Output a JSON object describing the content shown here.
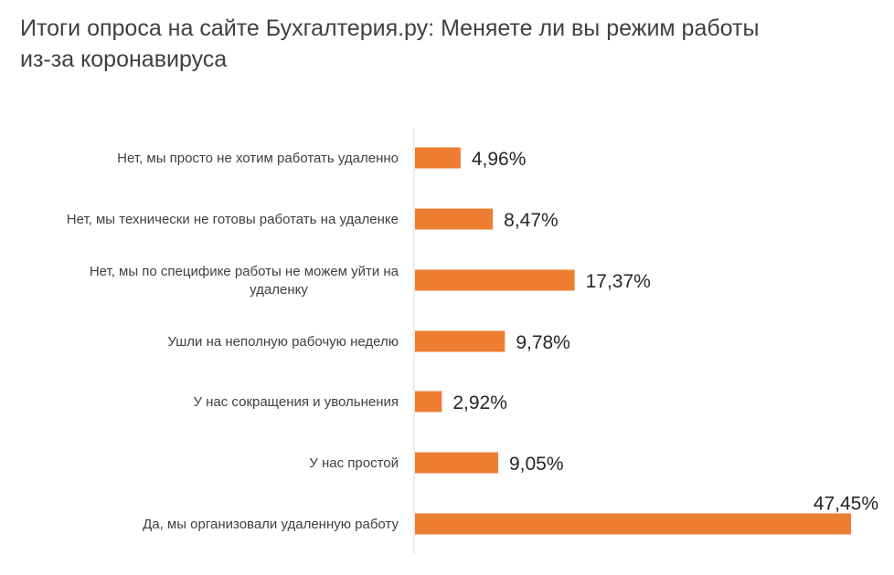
{
  "chart_data": {
    "type": "bar",
    "orientation": "horizontal",
    "title": "Итоги опроса на сайте Бухгалтерия.ру: Меняете ли вы режим работы из-за коронавируса",
    "xlabel": "",
    "ylabel": "",
    "categories": [
      "Нет, мы просто не хотим работать удаленно",
      "Нет, мы технически не готовы работать на удаленке",
      "Нет, мы по специфике работы не можем уйти на удаленку",
      "Ушли на неполную рабочую неделю",
      "У нас сокращения и увольнения",
      "У нас простой",
      "Да, мы организовали удаленную работу"
    ],
    "category_lines": [
      [
        "Нет, мы просто не хотим работать удаленно"
      ],
      [
        "Нет, мы технически не готовы работать на удаленке"
      ],
      [
        "Нет, мы по специфике работы не можем уйти на",
        "удаленку"
      ],
      [
        "Ушли на неполную рабочую неделю"
      ],
      [
        "У нас сокращения и увольнения"
      ],
      [
        "У нас простой"
      ],
      [
        "Да, мы организовали удаленную работу"
      ]
    ],
    "values": [
      4.96,
      8.47,
      17.37,
      9.78,
      2.92,
      9.05,
      47.45
    ],
    "value_labels": [
      "4,96%",
      "8,47%",
      "17,37%",
      "9,78%",
      "2,92%",
      "9,05%",
      "47,45%"
    ],
    "xlim": [
      0,
      47.45
    ],
    "grid": false,
    "legend": "none",
    "bar_color": "#ED7D31",
    "axis_color": "#D9D9D9"
  }
}
